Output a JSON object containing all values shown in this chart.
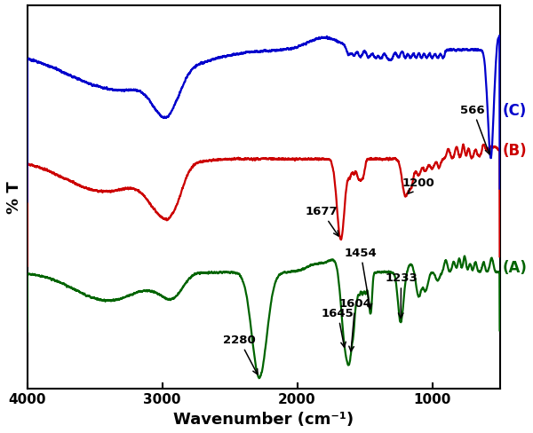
{
  "xlabel": "Wavenumber (cm⁻¹)",
  "ylabel": "% T",
  "colors": {
    "A": "#006400",
    "B": "#cc0000",
    "C": "#0000cc"
  },
  "xticks": [
    4000,
    3000,
    2000,
    1000
  ],
  "xtick_labels": [
    "4000",
    "3000",
    "2000",
    "1000"
  ],
  "figsize": [
    6.0,
    4.89
  ],
  "dpi": 100,
  "background": "#ffffff"
}
